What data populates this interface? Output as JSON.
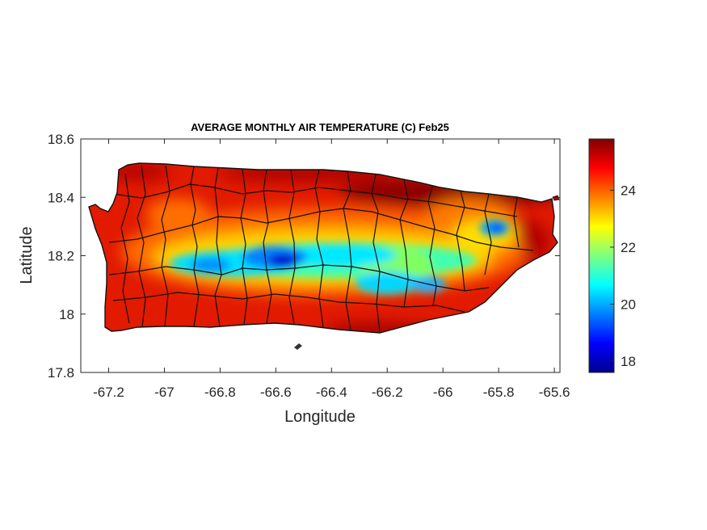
{
  "chart_data": {
    "type": "heatmap",
    "title": "AVERAGE MONTHLY AIR TEMPERATURE (C) Feb25",
    "xlabel": "Longitude",
    "ylabel": "Latitude",
    "xlim": [
      -67.3,
      -65.58
    ],
    "ylim": [
      17.8,
      18.6
    ],
    "xticks": [
      -67.2,
      -67,
      -66.8,
      -66.6,
      -66.4,
      -66.2,
      -66,
      -65.8,
      -65.6
    ],
    "yticks": [
      18.6,
      18.4,
      18.2,
      18,
      17.8
    ],
    "xtick_labels": [
      "-67.2",
      "-67",
      "-66.8",
      "-66.6",
      "-66.4",
      "-66.2",
      "-66",
      "-65.8",
      "-65.6"
    ],
    "ytick_labels": [
      "18.6",
      "18.4",
      "18.2",
      "18",
      "17.8"
    ],
    "colormap": "jet",
    "colorbar": {
      "range": [
        17.6,
        25.8
      ],
      "ticks": [
        18,
        20,
        22,
        24
      ],
      "tick_labels": [
        "18",
        "20",
        "22",
        "24"
      ]
    },
    "region": "Puerto Rico",
    "cool_spots": [
      {
        "lon": -66.6,
        "lat": 18.18,
        "value": 17.8
      },
      {
        "lon": -66.75,
        "lat": 18.17,
        "value": 19.5
      },
      {
        "lon": -66.45,
        "lat": 18.19,
        "value": 20.0
      },
      {
        "lon": -66.12,
        "lat": 18.15,
        "value": 20.5
      },
      {
        "lon": -66.15,
        "lat": 18.2,
        "value": 21.5
      },
      {
        "lon": -65.8,
        "lat": 18.29,
        "value": 19.0
      },
      {
        "lon": -66.05,
        "lat": 18.1,
        "value": 20.8
      }
    ]
  }
}
